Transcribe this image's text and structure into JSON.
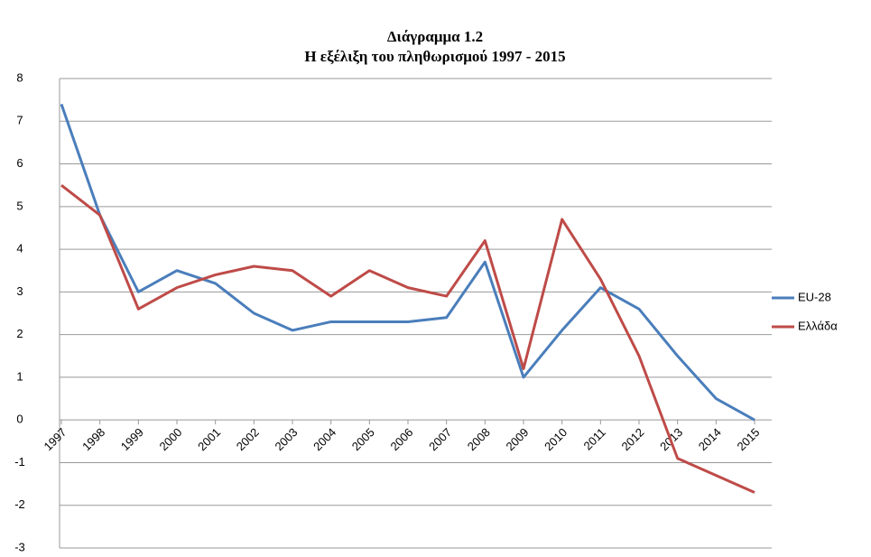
{
  "chart_data": {
    "type": "line",
    "title": "Διάγραμμα 1.2",
    "subtitle": "Η εξέλιξη του πληθωρισμού 1997 - 2015",
    "categories": [
      "1997",
      "1998",
      "1999",
      "2000",
      "2001",
      "2002",
      "2003",
      "2004",
      "2005",
      "2006",
      "2007",
      "2008",
      "2009",
      "2010",
      "2011",
      "2012",
      "2013",
      "2014",
      "2015"
    ],
    "series": [
      {
        "name": "EU-28",
        "color": "#4a7ebb",
        "values": [
          7.4,
          4.8,
          3.0,
          3.5,
          3.2,
          2.5,
          2.1,
          2.3,
          2.3,
          2.3,
          2.4,
          3.7,
          1.0,
          2.1,
          3.1,
          2.6,
          1.5,
          0.5,
          0.0
        ]
      },
      {
        "name": "Ελλάδα",
        "color": "#be4b48",
        "values": [
          5.5,
          4.8,
          2.6,
          3.1,
          3.4,
          3.6,
          3.5,
          2.9,
          3.5,
          3.1,
          2.9,
          4.2,
          1.2,
          4.7,
          3.3,
          1.5,
          -0.9,
          -1.3,
          -1.7
        ]
      }
    ],
    "ylim": [
      -3,
      8
    ],
    "yticks": [
      -3,
      -2,
      -1,
      0,
      1,
      2,
      3,
      4,
      5,
      6,
      7,
      8
    ],
    "grid": true,
    "legend": "right"
  }
}
